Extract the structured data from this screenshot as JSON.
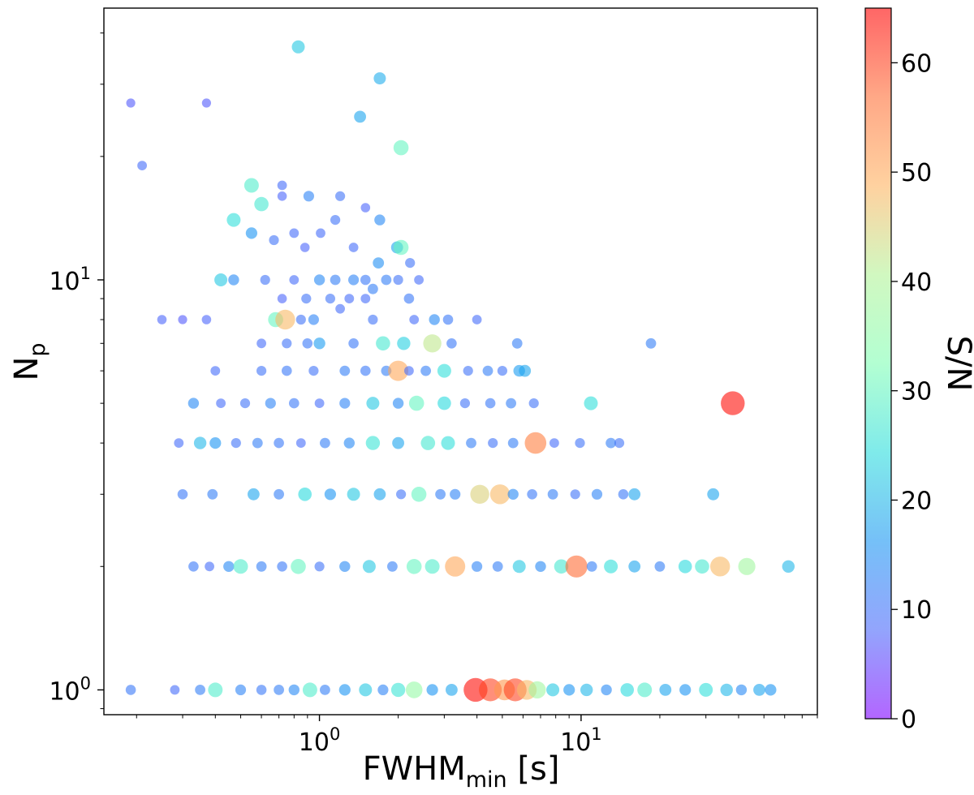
{
  "chart_data": {
    "type": "scatter",
    "title": "",
    "xscale": "log",
    "yscale": "log",
    "xlim": [
      0.15,
      80
    ],
    "ylim": [
      0.87,
      46
    ],
    "x_ticks": [
      {
        "value": 1,
        "base": "10",
        "exp": "0"
      },
      {
        "value": 10,
        "base": "10",
        "exp": "1"
      }
    ],
    "y_ticks": [
      {
        "value": 1,
        "base": "10",
        "exp": "0"
      },
      {
        "value": 10,
        "base": "10",
        "exp": "1"
      }
    ],
    "xlabel": {
      "main": "FWHM",
      "sub": "min",
      "unit": " [s]"
    },
    "ylabel": {
      "main": "N",
      "sub": "p"
    },
    "colorbar": {
      "label": "S/N",
      "min": 0,
      "max": 65,
      "ticks": [
        "0",
        "10",
        "20",
        "30",
        "40",
        "50",
        "60"
      ],
      "colormap": "rainbow"
    },
    "marker_size_encodes": "S/N",
    "points": [
      [
        0.83,
        37,
        22
      ],
      [
        1.7,
        31,
        19
      ],
      [
        1.43,
        25,
        18
      ],
      [
        2.05,
        21,
        30
      ],
      [
        0.19,
        27,
        7
      ],
      [
        0.37,
        27,
        7
      ],
      [
        0.21,
        19,
        9
      ],
      [
        0.55,
        17,
        28
      ],
      [
        0.72,
        17,
        9
      ],
      [
        0.6,
        15.3,
        27
      ],
      [
        0.72,
        16,
        8
      ],
      [
        0.91,
        16,
        13
      ],
      [
        1.2,
        16,
        10
      ],
      [
        1.5,
        15,
        8
      ],
      [
        0.47,
        14,
        25
      ],
      [
        0.55,
        13,
        16
      ],
      [
        0.67,
        12.5,
        10
      ],
      [
        0.8,
        13,
        9
      ],
      [
        0.88,
        12,
        8
      ],
      [
        1.01,
        13,
        9
      ],
      [
        1.15,
        14,
        10
      ],
      [
        1.35,
        12,
        9
      ],
      [
        1.7,
        14,
        14
      ],
      [
        1.98,
        12,
        18
      ],
      [
        2.05,
        12,
        30
      ],
      [
        1.68,
        11,
        15
      ],
      [
        1.8,
        10,
        12
      ],
      [
        2.22,
        11,
        10
      ],
      [
        0.42,
        10,
        22
      ],
      [
        0.47,
        10,
        14
      ],
      [
        0.62,
        10,
        10
      ],
      [
        0.8,
        10,
        9
      ],
      [
        1.0,
        10,
        14
      ],
      [
        1.15,
        10,
        12
      ],
      [
        1.35,
        10,
        13
      ],
      [
        1.5,
        10,
        11
      ],
      [
        1.6,
        9.5,
        12
      ],
      [
        2.0,
        10,
        10
      ],
      [
        2.4,
        10,
        9
      ],
      [
        0.72,
        9,
        8
      ],
      [
        0.89,
        9,
        10
      ],
      [
        1.1,
        9,
        10
      ],
      [
        1.3,
        9,
        9
      ],
      [
        1.5,
        9,
        9
      ],
      [
        2.2,
        9,
        11
      ],
      [
        1.2,
        8.5,
        9
      ],
      [
        0.25,
        8,
        8
      ],
      [
        0.3,
        8,
        7
      ],
      [
        0.37,
        8,
        8
      ],
      [
        0.68,
        8,
        30
      ],
      [
        0.74,
        8,
        48
      ],
      [
        0.85,
        8,
        10
      ],
      [
        0.95,
        8,
        13
      ],
      [
        1.6,
        8,
        10
      ],
      [
        2.3,
        8,
        9
      ],
      [
        2.75,
        8,
        14
      ],
      [
        3.1,
        8,
        11
      ],
      [
        4.0,
        8,
        9
      ],
      [
        0.6,
        7,
        9
      ],
      [
        0.75,
        7,
        10
      ],
      [
        0.9,
        7,
        11
      ],
      [
        1.0,
        7,
        17
      ],
      [
        1.35,
        7,
        11
      ],
      [
        1.75,
        7,
        27
      ],
      [
        2.1,
        7,
        23
      ],
      [
        2.7,
        7,
        42
      ],
      [
        3.2,
        7,
        11
      ],
      [
        5.7,
        7,
        12
      ],
      [
        18.5,
        7,
        12
      ],
      [
        0.4,
        6,
        9
      ],
      [
        0.6,
        6,
        10
      ],
      [
        0.75,
        6,
        11
      ],
      [
        0.95,
        6,
        10
      ],
      [
        1.25,
        6,
        12
      ],
      [
        1.5,
        6,
        11
      ],
      [
        1.8,
        6,
        12
      ],
      [
        2.0,
        6,
        50
      ],
      [
        2.2,
        6,
        9
      ],
      [
        2.55,
        6,
        12
      ],
      [
        3.0,
        6,
        25
      ],
      [
        3.7,
        6,
        10
      ],
      [
        4.4,
        6,
        12
      ],
      [
        5.0,
        6,
        10
      ],
      [
        5.8,
        6,
        17
      ],
      [
        6.1,
        6,
        18
      ],
      [
        0.33,
        5,
        14
      ],
      [
        0.42,
        5,
        9
      ],
      [
        0.52,
        5,
        10
      ],
      [
        0.65,
        5,
        13
      ],
      [
        0.8,
        5,
        11
      ],
      [
        1.0,
        5,
        9
      ],
      [
        1.25,
        5,
        13
      ],
      [
        1.6,
        5,
        22
      ],
      [
        2.0,
        5,
        14
      ],
      [
        2.35,
        5,
        30
      ],
      [
        3.0,
        5,
        24
      ],
      [
        3.6,
        5,
        10
      ],
      [
        4.5,
        5,
        11
      ],
      [
        5.4,
        5,
        12
      ],
      [
        6.6,
        5,
        10
      ],
      [
        10.9,
        5,
        25
      ],
      [
        38,
        5,
        64
      ],
      [
        0.29,
        4,
        9
      ],
      [
        0.35,
        4,
        20
      ],
      [
        0.4,
        4,
        16
      ],
      [
        0.48,
        4,
        10
      ],
      [
        0.58,
        4,
        12
      ],
      [
        0.7,
        4,
        11
      ],
      [
        0.85,
        4,
        9
      ],
      [
        1.05,
        4,
        12
      ],
      [
        1.3,
        4,
        14
      ],
      [
        1.6,
        4,
        26
      ],
      [
        2.0,
        4,
        18
      ],
      [
        2.6,
        4,
        27
      ],
      [
        3.1,
        4,
        25
      ],
      [
        3.8,
        4,
        12
      ],
      [
        4.6,
        4,
        10
      ],
      [
        5.5,
        4,
        12
      ],
      [
        6.7,
        4,
        55
      ],
      [
        7.9,
        4,
        9
      ],
      [
        9.9,
        4,
        10
      ],
      [
        13,
        4,
        12
      ],
      [
        14,
        4,
        10
      ],
      [
        0.3,
        3,
        11
      ],
      [
        0.39,
        3,
        12
      ],
      [
        0.56,
        3,
        18
      ],
      [
        0.7,
        3,
        12
      ],
      [
        0.88,
        3,
        24
      ],
      [
        1.1,
        3,
        16
      ],
      [
        1.35,
        3,
        22
      ],
      [
        1.7,
        3,
        18
      ],
      [
        2.05,
        3,
        10
      ],
      [
        2.4,
        3,
        30
      ],
      [
        2.9,
        3,
        12
      ],
      [
        3.3,
        3,
        13
      ],
      [
        4.1,
        3,
        45
      ],
      [
        4.9,
        3,
        48
      ],
      [
        5.5,
        3,
        14
      ],
      [
        6.5,
        3,
        11
      ],
      [
        7.8,
        3,
        12
      ],
      [
        9.5,
        3,
        10
      ],
      [
        11.5,
        3,
        13
      ],
      [
        14.5,
        3,
        11
      ],
      [
        16,
        3,
        18
      ],
      [
        32,
        3,
        18
      ],
      [
        0.33,
        2,
        11
      ],
      [
        0.38,
        2,
        9
      ],
      [
        0.45,
        2,
        14
      ],
      [
        0.5,
        2,
        28
      ],
      [
        0.6,
        2,
        12
      ],
      [
        0.72,
        2,
        11
      ],
      [
        0.83,
        2,
        30
      ],
      [
        1.0,
        2,
        10
      ],
      [
        1.25,
        2,
        14
      ],
      [
        1.55,
        2,
        22
      ],
      [
        1.9,
        2,
        12
      ],
      [
        2.3,
        2,
        30
      ],
      [
        2.7,
        2,
        28
      ],
      [
        3.3,
        2,
        50
      ],
      [
        4.0,
        2,
        13
      ],
      [
        4.8,
        2,
        12
      ],
      [
        5.8,
        2,
        22
      ],
      [
        7.0,
        2,
        14
      ],
      [
        8.4,
        2,
        27
      ],
      [
        9.6,
        2,
        57
      ],
      [
        11,
        2,
        12
      ],
      [
        13,
        2,
        25
      ],
      [
        16,
        2,
        18
      ],
      [
        20,
        2,
        12
      ],
      [
        25,
        2,
        24
      ],
      [
        29,
        2,
        27
      ],
      [
        34,
        2,
        48
      ],
      [
        43,
        2,
        38
      ],
      [
        62,
        2,
        20
      ],
      [
        0.19,
        1,
        11
      ],
      [
        0.28,
        1,
        9
      ],
      [
        0.35,
        1,
        12
      ],
      [
        0.4,
        1,
        28
      ],
      [
        0.5,
        1,
        13
      ],
      [
        0.6,
        1,
        11
      ],
      [
        0.7,
        1,
        12
      ],
      [
        0.8,
        1,
        14
      ],
      [
        0.92,
        1,
        28
      ],
      [
        1.05,
        1,
        12
      ],
      [
        1.25,
        1,
        16
      ],
      [
        1.5,
        1,
        22
      ],
      [
        1.75,
        1,
        13
      ],
      [
        2.0,
        1,
        26
      ],
      [
        2.3,
        1,
        36
      ],
      [
        2.7,
        1,
        16
      ],
      [
        3.2,
        1,
        18
      ],
      [
        3.95,
        1,
        64
      ],
      [
        4.5,
        1,
        60
      ],
      [
        5.1,
        1,
        52
      ],
      [
        5.6,
        1,
        60
      ],
      [
        6.2,
        1,
        48
      ],
      [
        6.8,
        1,
        38
      ],
      [
        7.8,
        1,
        22
      ],
      [
        9.0,
        1,
        16
      ],
      [
        10.5,
        1,
        20
      ],
      [
        12.5,
        1,
        14
      ],
      [
        15,
        1,
        24
      ],
      [
        17.5,
        1,
        28
      ],
      [
        21,
        1,
        18
      ],
      [
        25,
        1,
        16
      ],
      [
        30,
        1,
        25
      ],
      [
        36,
        1,
        20
      ],
      [
        41,
        1,
        14
      ],
      [
        48,
        1,
        18
      ],
      [
        53,
        1,
        16
      ]
    ]
  }
}
